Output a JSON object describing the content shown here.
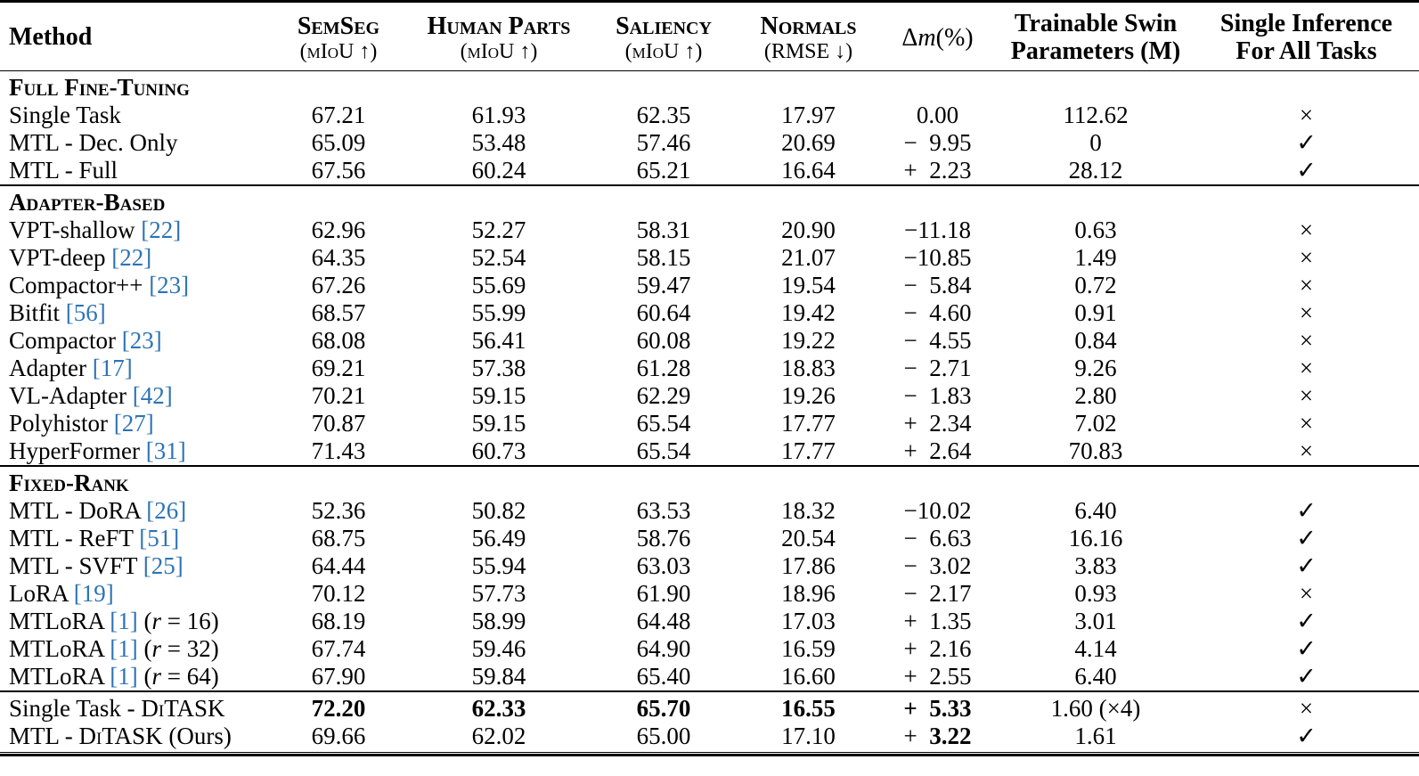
{
  "cite_color": "#2E74B5",
  "table": {
    "header": {
      "method": "Method",
      "columns": [
        {
          "id": "semseg",
          "title": "SemSeg",
          "smallcaps": true,
          "sub": "(mIoU ↑)",
          "sub_smallcaps": true
        },
        {
          "id": "human-parts",
          "title": "Human Parts",
          "smallcaps": true,
          "sub": "(mIoU ↑)",
          "sub_smallcaps": true
        },
        {
          "id": "saliency",
          "title": "Saliency",
          "smallcaps": true,
          "sub": "(mIoU ↑)",
          "sub_smallcaps": true
        },
        {
          "id": "normals",
          "title": "Normals",
          "smallcaps": true,
          "sub": "(RMSE ↓)",
          "sub_smallcaps": true
        },
        {
          "id": "delta-m",
          "math": true,
          "title_parts": [
            {
              "text": "Δ"
            },
            {
              "text": "m",
              "italic": true
            },
            {
              "text": "(%)"
            }
          ]
        },
        {
          "id": "trainable-params",
          "title": "Trainable Swin",
          "sub": "Parameters (M)",
          "bold_sub": true
        },
        {
          "id": "single-inference",
          "title": "Single Inference",
          "sub": "For All Tasks",
          "bold_sub": true
        }
      ]
    },
    "sections": [
      {
        "label": "Full Fine-Tuning",
        "rows": [
          {
            "method": [
              {
                "text": "Single Task"
              }
            ],
            "cells": [
              "67.21",
              "61.93",
              "62.35",
              "17.97",
              "0.00",
              "112.62",
              "×"
            ]
          },
          {
            "method": [
              {
                "text": "MTL - Dec. Only"
              }
            ],
            "cells": [
              "65.09",
              "53.48",
              "57.46",
              "20.69",
              "− 9.95",
              "0",
              "✓"
            ]
          },
          {
            "method": [
              {
                "text": "MTL - Full"
              }
            ],
            "cells": [
              "67.56",
              "60.24",
              "65.21",
              "16.64",
              "+ 2.23",
              "28.12",
              "✓"
            ]
          }
        ]
      },
      {
        "label": "Adapter-Based",
        "rows": [
          {
            "method": [
              {
                "text": "VPT-shallow "
              },
              {
                "text": "[22]",
                "cite": true
              }
            ],
            "cells": [
              "62.96",
              "52.27",
              "58.31",
              "20.90",
              "−11.18",
              "0.63",
              "×"
            ]
          },
          {
            "method": [
              {
                "text": "VPT-deep "
              },
              {
                "text": "[22]",
                "cite": true
              }
            ],
            "cells": [
              "64.35",
              "52.54",
              "58.15",
              "21.07",
              "−10.85",
              "1.49",
              "×"
            ]
          },
          {
            "method": [
              {
                "text": "Compactor++ "
              },
              {
                "text": "[23]",
                "cite": true
              }
            ],
            "cells": [
              "67.26",
              "55.69",
              "59.47",
              "19.54",
              "− 5.84",
              "0.72",
              "×"
            ]
          },
          {
            "method": [
              {
                "text": "Bitfit "
              },
              {
                "text": "[56]",
                "cite": true
              }
            ],
            "cells": [
              "68.57",
              "55.99",
              "60.64",
              "19.42",
              "− 4.60",
              "0.91",
              "×"
            ]
          },
          {
            "method": [
              {
                "text": "Compactor "
              },
              {
                "text": "[23]",
                "cite": true
              }
            ],
            "cells": [
              "68.08",
              "56.41",
              "60.08",
              "19.22",
              "− 4.55",
              "0.84",
              "×"
            ]
          },
          {
            "method": [
              {
                "text": "Adapter "
              },
              {
                "text": "[17]",
                "cite": true
              }
            ],
            "cells": [
              "69.21",
              "57.38",
              "61.28",
              "18.83",
              "− 2.71",
              "9.26",
              "×"
            ]
          },
          {
            "method": [
              {
                "text": "VL-Adapter "
              },
              {
                "text": "[42]",
                "cite": true
              }
            ],
            "cells": [
              "70.21",
              "59.15",
              "62.29",
              "19.26",
              "− 1.83",
              "2.80",
              "×"
            ]
          },
          {
            "method": [
              {
                "text": "Polyhistor "
              },
              {
                "text": "[27]",
                "cite": true
              }
            ],
            "cells": [
              "70.87",
              "59.15",
              "65.54",
              "17.77",
              "+ 2.34",
              "7.02",
              "×"
            ]
          },
          {
            "method": [
              {
                "text": "HyperFormer "
              },
              {
                "text": "[31]",
                "cite": true
              }
            ],
            "cells": [
              "71.43",
              "60.73",
              "65.54",
              "17.77",
              "+ 2.64",
              "70.83",
              "×"
            ]
          }
        ]
      },
      {
        "label": "Fixed-Rank",
        "rows": [
          {
            "method": [
              {
                "text": "MTL - DoRA "
              },
              {
                "text": "[26]",
                "cite": true
              }
            ],
            "cells": [
              "52.36",
              "50.82",
              "63.53",
              "18.32",
              "−10.02",
              "6.40",
              "✓"
            ]
          },
          {
            "method": [
              {
                "text": "MTL - ReFT "
              },
              {
                "text": "[51]",
                "cite": true
              }
            ],
            "cells": [
              "68.75",
              "56.49",
              "58.76",
              "20.54",
              "− 6.63",
              "16.16",
              "✓"
            ]
          },
          {
            "method": [
              {
                "text": "MTL - SVFT "
              },
              {
                "text": "[25]",
                "cite": true
              }
            ],
            "cells": [
              "64.44",
              "55.94",
              "63.03",
              "17.86",
              "− 3.02",
              "3.83",
              "✓"
            ]
          },
          {
            "method": [
              {
                "text": "LoRA "
              },
              {
                "text": "[19]",
                "cite": true
              }
            ],
            "cells": [
              "70.12",
              "57.73",
              "61.90",
              "18.96",
              "− 2.17",
              "0.93",
              "×"
            ]
          },
          {
            "method": [
              {
                "text": "MTLoRA "
              },
              {
                "text": "[1]",
                "cite": true
              },
              {
                "text": " ("
              },
              {
                "text": "r",
                "italic": true
              },
              {
                "text": " = 16)"
              }
            ],
            "cells": [
              "68.19",
              "58.99",
              "64.48",
              "17.03",
              "+ 1.35",
              "3.01",
              "✓"
            ]
          },
          {
            "method": [
              {
                "text": "MTLoRA "
              },
              {
                "text": "[1]",
                "cite": true
              },
              {
                "text": " ("
              },
              {
                "text": "r",
                "italic": true
              },
              {
                "text": " = 32)"
              }
            ],
            "cells": [
              "67.74",
              "59.46",
              "64.90",
              "16.59",
              "+ 2.16",
              "4.14",
              "✓"
            ]
          },
          {
            "method": [
              {
                "text": "MTLoRA "
              },
              {
                "text": "[1]",
                "cite": true
              },
              {
                "text": " ("
              },
              {
                "text": "r",
                "italic": true
              },
              {
                "text": " = 64)"
              }
            ],
            "cells": [
              "67.90",
              "59.84",
              "65.40",
              "16.60",
              "+ 2.55",
              "6.40",
              "✓"
            ]
          }
        ]
      },
      {
        "label": null,
        "rows": [
          {
            "method": [
              {
                "text": "Single Task - D"
              },
              {
                "text": "i",
                "sc": true
              },
              {
                "text": "TASK"
              }
            ],
            "cells": [
              {
                "text": "72.20",
                "bold": true
              },
              {
                "text": "62.33",
                "bold": true
              },
              {
                "text": "65.70",
                "bold": true
              },
              {
                "text": "16.55",
                "bold": true
              },
              {
                "text": "+ 5.33",
                "bold": true
              },
              "1.60 (×4)",
              "×"
            ]
          },
          {
            "method": [
              {
                "text": "MTL - D"
              },
              {
                "text": "i",
                "sc": true
              },
              {
                "text": "TASK (Ours)"
              }
            ],
            "cells": [
              "69.66",
              "62.02",
              "65.00",
              "17.10",
              [
                {
                  "text": "+ "
                },
                {
                  "text": "3.22",
                  "bold": true
                }
              ],
              "1.61",
              "✓"
            ]
          }
        ]
      }
    ]
  }
}
